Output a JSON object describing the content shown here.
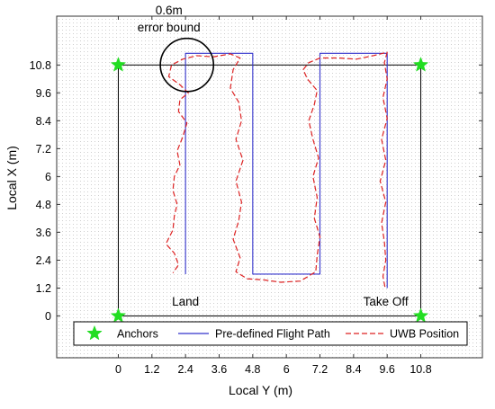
{
  "chart_data": {
    "type": "line",
    "title": "",
    "xlabel": "Local Y (m)",
    "ylabel": "Local X (m)",
    "xlim": [
      -2.2,
      13.0
    ],
    "ylim": [
      -1.8,
      12.9
    ],
    "xticks": [
      0,
      1.2,
      2.4,
      3.6,
      4.8,
      6,
      7.2,
      8.4,
      9.6,
      10.8
    ],
    "xtick_labels": [
      "0",
      "1.2",
      "2.4",
      "3.6",
      "4.8",
      "6",
      "7.2",
      "8.4",
      "9.6",
      "10.8"
    ],
    "yticks": [
      0,
      1.2,
      2.4,
      3.6,
      4.8,
      6,
      7.2,
      8.4,
      9.6,
      10.8
    ],
    "ytick_labels": [
      "0",
      "1.2",
      "2.4",
      "3.6",
      "4.8",
      "6",
      "7.2",
      "8.4",
      "9.6",
      "10.8"
    ],
    "grid": true,
    "legend_position": "bottom",
    "anchor_box": {
      "x0": 0,
      "x1": 10.8,
      "y0": 0,
      "y1": 10.8
    },
    "series": [
      {
        "name": "Anchors",
        "kind": "marker",
        "marker": "star",
        "color": "#22dd22",
        "points": [
          [
            0,
            0
          ],
          [
            0,
            10.8
          ],
          [
            10.8,
            0
          ],
          [
            10.8,
            10.8
          ]
        ]
      },
      {
        "name": "Pre-defined Flight Path",
        "kind": "line",
        "color": "#3333cc",
        "dash": "solid",
        "points": [
          [
            9.6,
            1.2
          ],
          [
            9.6,
            11.3
          ],
          [
            7.2,
            11.3
          ],
          [
            7.2,
            1.8
          ],
          [
            4.8,
            1.8
          ],
          [
            4.8,
            11.3
          ],
          [
            2.4,
            11.3
          ],
          [
            2.4,
            1.8
          ]
        ]
      },
      {
        "name": "UWB Position",
        "kind": "line",
        "color": "#dd2222",
        "dash": "dashed",
        "points": [
          [
            9.52,
            1.25
          ],
          [
            9.45,
            1.7
          ],
          [
            9.55,
            2.4
          ],
          [
            9.5,
            3.2
          ],
          [
            9.4,
            4.0
          ],
          [
            9.55,
            4.9
          ],
          [
            9.35,
            5.8
          ],
          [
            9.55,
            6.7
          ],
          [
            9.4,
            7.6
          ],
          [
            9.6,
            8.5
          ],
          [
            9.45,
            9.4
          ],
          [
            9.6,
            10.2
          ],
          [
            9.5,
            10.9
          ],
          [
            9.6,
            11.35
          ],
          [
            9.1,
            11.2
          ],
          [
            8.5,
            11.05
          ],
          [
            7.9,
            11.1
          ],
          [
            7.2,
            11.1
          ],
          [
            6.8,
            10.9
          ],
          [
            6.6,
            10.6
          ],
          [
            6.75,
            10.2
          ],
          [
            7.1,
            9.7
          ],
          [
            7.0,
            9.1
          ],
          [
            6.8,
            8.4
          ],
          [
            6.95,
            7.6
          ],
          [
            7.15,
            6.8
          ],
          [
            6.95,
            6.0
          ],
          [
            7.1,
            5.1
          ],
          [
            7.0,
            4.2
          ],
          [
            7.2,
            3.4
          ],
          [
            7.1,
            2.6
          ],
          [
            7.05,
            1.9
          ],
          [
            6.5,
            1.5
          ],
          [
            5.8,
            1.45
          ],
          [
            5.2,
            1.55
          ],
          [
            4.6,
            1.6
          ],
          [
            4.2,
            1.9
          ],
          [
            4.35,
            2.5
          ],
          [
            4.1,
            3.3
          ],
          [
            4.3,
            4.1
          ],
          [
            4.4,
            4.9
          ],
          [
            4.2,
            5.8
          ],
          [
            4.45,
            6.7
          ],
          [
            4.2,
            7.6
          ],
          [
            4.4,
            8.4
          ],
          [
            4.3,
            9.2
          ],
          [
            4.0,
            9.8
          ],
          [
            4.1,
            10.6
          ],
          [
            4.35,
            11.1
          ],
          [
            4.0,
            11.28
          ],
          [
            3.4,
            11.15
          ],
          [
            2.8,
            11.2
          ],
          [
            2.3,
            11.05
          ],
          [
            1.9,
            10.8
          ],
          [
            1.8,
            10.3
          ],
          [
            2.2,
            9.95
          ],
          [
            2.5,
            9.6
          ],
          [
            2.2,
            9.3
          ],
          [
            2.15,
            8.8
          ],
          [
            2.45,
            8.3
          ],
          [
            2.3,
            7.7
          ],
          [
            2.1,
            7.1
          ],
          [
            2.2,
            6.5
          ],
          [
            2.0,
            6.0
          ],
          [
            1.95,
            5.4
          ],
          [
            2.1,
            4.8
          ],
          [
            2.0,
            4.3
          ],
          [
            1.95,
            3.7
          ],
          [
            1.7,
            3.1
          ],
          [
            2.0,
            2.7
          ],
          [
            2.15,
            2.2
          ],
          [
            1.95,
            1.85
          ]
        ]
      }
    ],
    "annotations": {
      "circle_label_line1": "0.6m",
      "circle_label_line2": "error bound",
      "land_label": "Land",
      "takeoff_label": "Take Off"
    },
    "error_circle": {
      "cx": 2.45,
      "cy": 10.8,
      "r": 0.95
    }
  }
}
